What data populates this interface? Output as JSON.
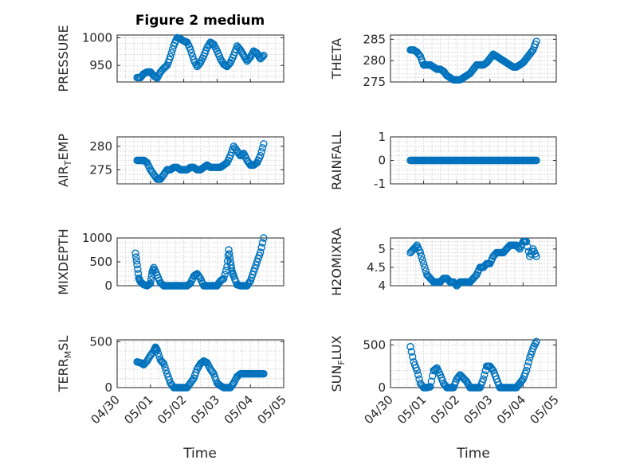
{
  "figure": {
    "title": "Figure 2 medium",
    "xlabel": "Time",
    "marker_color": "#0072BD",
    "x_tick_labels": [
      "04/30",
      "05/01",
      "05/02",
      "05/03",
      "05/04",
      "05/05"
    ]
  },
  "chart_data": [
    {
      "type": "scatter",
      "title": "Figure 2 medium",
      "ylabel": "PRESSURE",
      "ylim": [
        920,
        1005
      ],
      "yticks": [
        950,
        1000
      ],
      "ytick_labels": [
        "950",
        "1000"
      ],
      "xlim": [
        0,
        5
      ],
      "grid": true,
      "series": [
        {
          "x": [
            0.6,
            0.7,
            0.8,
            0.9,
            1.0,
            1.1,
            1.2,
            1.3,
            1.4,
            1.5,
            1.6,
            1.7,
            1.8,
            1.9,
            2.0,
            2.1,
            2.2,
            2.3,
            2.4,
            2.5,
            2.6,
            2.7,
            2.8,
            2.9,
            3.0,
            3.1,
            3.2,
            3.3,
            3.4,
            3.5,
            3.6,
            3.7,
            3.8,
            3.9,
            4.0,
            4.1,
            4.2,
            4.3,
            4.4
          ],
          "y": [
            928,
            928,
            935,
            938,
            938,
            931,
            927,
            938,
            945,
            950,
            966,
            986,
            1000,
            998,
            994,
            992,
            979,
            960,
            948,
            955,
            967,
            982,
            992,
            988,
            976,
            962,
            952,
            948,
            955,
            968,
            985,
            978,
            968,
            958,
            965,
            976,
            972,
            962,
            968
          ]
        }
      ]
    },
    {
      "type": "scatter",
      "ylabel": "THETA",
      "ylim": [
        275,
        286
      ],
      "yticks": [
        275,
        280,
        285
      ],
      "ytick_labels": [
        "275",
        "280",
        "285"
      ],
      "xlim": [
        0,
        5
      ],
      "grid": true,
      "series": [
        {
          "x": [
            0.6,
            0.7,
            0.8,
            0.9,
            1.0,
            1.1,
            1.2,
            1.3,
            1.4,
            1.5,
            1.6,
            1.7,
            1.8,
            1.9,
            2.0,
            2.1,
            2.2,
            2.3,
            2.4,
            2.5,
            2.6,
            2.7,
            2.8,
            2.9,
            3.0,
            3.1,
            3.2,
            3.3,
            3.4,
            3.5,
            3.6,
            3.7,
            3.8,
            3.9,
            4.0,
            4.1,
            4.2,
            4.3,
            4.4
          ],
          "y": [
            282.5,
            282.5,
            282,
            281,
            279,
            279,
            279,
            278.5,
            278,
            278,
            277.5,
            276.5,
            276,
            275.5,
            275.5,
            275.5,
            276,
            276.5,
            277,
            278,
            279,
            279,
            279,
            279.5,
            280.5,
            281.5,
            281,
            280.5,
            280,
            279.5,
            279,
            278.5,
            278.5,
            279,
            279.5,
            280.5,
            281.5,
            282.5,
            284.5
          ]
        }
      ]
    },
    {
      "type": "scatter",
      "ylabel": "AIR_TEMP",
      "ylim": [
        272,
        282
      ],
      "yticks": [
        275,
        280
      ],
      "ytick_labels": [
        "275",
        "280"
      ],
      "xlim": [
        0,
        5
      ],
      "grid": true,
      "series": [
        {
          "x": [
            0.6,
            0.7,
            0.8,
            0.9,
            1.0,
            1.1,
            1.2,
            1.3,
            1.4,
            1.5,
            1.6,
            1.7,
            1.8,
            1.9,
            2.0,
            2.1,
            2.2,
            2.3,
            2.4,
            2.5,
            2.6,
            2.7,
            2.8,
            2.9,
            3.0,
            3.1,
            3.2,
            3.3,
            3.4,
            3.5,
            3.6,
            3.7,
            3.8,
            3.9,
            4.0,
            4.1,
            4.2,
            4.3,
            4.4
          ],
          "y": [
            277,
            277,
            277,
            276.5,
            275,
            274,
            273,
            273,
            274,
            275,
            275,
            275.5,
            275.5,
            275,
            275,
            275,
            275.5,
            275.5,
            275,
            275,
            275.5,
            276,
            275.5,
            275.5,
            275.5,
            275.5,
            276,
            276.5,
            278,
            280,
            279,
            278,
            278.5,
            277,
            276,
            276,
            276.5,
            278,
            280.5
          ]
        }
      ]
    },
    {
      "type": "scatter",
      "ylabel": "RAINFALL",
      "ylim": [
        -1,
        1
      ],
      "yticks": [
        -1,
        0,
        1
      ],
      "ytick_labels": [
        "-1",
        "0",
        "1"
      ],
      "xlim": [
        0,
        5
      ],
      "grid": true,
      "series": [
        {
          "x": [
            0.6,
            0.7,
            0.8,
            0.9,
            1.0,
            1.1,
            1.2,
            1.3,
            1.4,
            1.5,
            1.6,
            1.7,
            1.8,
            1.9,
            2.0,
            2.1,
            2.2,
            2.3,
            2.4,
            2.5,
            2.6,
            2.7,
            2.8,
            2.9,
            3.0,
            3.1,
            3.2,
            3.3,
            3.4,
            3.5,
            3.6,
            3.7,
            3.8,
            3.9,
            4.0,
            4.1,
            4.2,
            4.3,
            4.4
          ],
          "y": [
            0,
            0,
            0,
            0,
            0,
            0,
            0,
            0,
            0,
            0,
            0,
            0,
            0,
            0,
            0,
            0,
            0,
            0,
            0,
            0,
            0,
            0,
            0,
            0,
            0,
            0,
            0,
            0,
            0,
            0,
            0,
            0,
            0,
            0,
            0,
            0,
            0,
            0,
            0
          ]
        }
      ]
    },
    {
      "type": "scatter",
      "ylabel": "MIXDEPTH",
      "ylim": [
        0,
        1000
      ],
      "yticks": [
        0,
        500,
        1000
      ],
      "ytick_labels": [
        "0",
        "500",
        "1000"
      ],
      "xlim": [
        0,
        5
      ],
      "grid": true,
      "series": [
        {
          "x": [
            0.55,
            0.6,
            0.65,
            0.7,
            0.8,
            0.9,
            1.0,
            1.05,
            1.1,
            1.2,
            1.3,
            1.4,
            1.5,
            1.6,
            1.7,
            1.8,
            1.9,
            2.0,
            2.1,
            2.2,
            2.3,
            2.4,
            2.5,
            2.6,
            2.7,
            2.8,
            2.9,
            3.0,
            3.1,
            3.2,
            3.3,
            3.35,
            3.4,
            3.45,
            3.5,
            3.6,
            3.7,
            3.8,
            3.9,
            4.0,
            4.1,
            4.2,
            4.3,
            4.4
          ],
          "y": [
            680,
            440,
            160,
            80,
            20,
            0,
            50,
            280,
            380,
            220,
            60,
            0,
            0,
            0,
            0,
            0,
            0,
            0,
            0,
            50,
            200,
            250,
            150,
            0,
            0,
            0,
            0,
            0,
            100,
            150,
            400,
            750,
            500,
            300,
            200,
            20,
            0,
            0,
            0,
            100,
            300,
            500,
            700,
            1000
          ]
        }
      ]
    },
    {
      "type": "scatter",
      "ylabel": "H2OMIXRA",
      "ylim": [
        4,
        5.3
      ],
      "yticks": [
        4,
        4.5,
        5
      ],
      "ytick_labels": [
        "4",
        "4.5",
        "5"
      ],
      "xlim": [
        0,
        5
      ],
      "grid": true,
      "series": [
        {
          "x": [
            0.6,
            0.7,
            0.8,
            0.9,
            1.0,
            1.1,
            1.2,
            1.3,
            1.4,
            1.5,
            1.6,
            1.7,
            1.8,
            1.9,
            2.0,
            2.1,
            2.2,
            2.3,
            2.4,
            2.5,
            2.6,
            2.7,
            2.8,
            2.9,
            3.0,
            3.1,
            3.2,
            3.3,
            3.4,
            3.5,
            3.6,
            3.7,
            3.8,
            3.9,
            4.0,
            4.1,
            4.2,
            4.3,
            4.4
          ],
          "y": [
            4.9,
            5.0,
            5.1,
            4.9,
            4.6,
            4.3,
            4.2,
            4.1,
            4.1,
            4.1,
            4.2,
            4.2,
            4.1,
            4.1,
            4.0,
            4.1,
            4.1,
            4.1,
            4.1,
            4.2,
            4.3,
            4.5,
            4.5,
            4.6,
            4.6,
            4.8,
            4.9,
            4.9,
            4.9,
            5.0,
            5.1,
            5.1,
            5.1,
            5.0,
            5.2,
            5.2,
            4.8,
            5.0,
            4.8
          ]
        }
      ]
    },
    {
      "type": "scatter",
      "ylabel": "TERR_MSL",
      "ylim": [
        0,
        520
      ],
      "yticks": [
        0,
        500
      ],
      "ytick_labels": [
        "0",
        "500"
      ],
      "xlim": [
        0,
        5
      ],
      "grid": true,
      "series": [
        {
          "x": [
            0.6,
            0.7,
            0.8,
            0.9,
            1.0,
            1.1,
            1.15,
            1.2,
            1.3,
            1.4,
            1.5,
            1.6,
            1.7,
            1.8,
            1.9,
            2.0,
            2.1,
            2.2,
            2.3,
            2.4,
            2.5,
            2.6,
            2.7,
            2.8,
            2.9,
            3.0,
            3.1,
            3.2,
            3.3,
            3.4,
            3.5,
            3.6,
            3.7,
            3.8,
            3.9,
            4.0,
            4.1,
            4.2,
            4.3,
            4.4
          ],
          "y": [
            280,
            270,
            250,
            290,
            350,
            400,
            440,
            410,
            300,
            260,
            150,
            50,
            0,
            0,
            0,
            0,
            0,
            50,
            100,
            200,
            260,
            290,
            270,
            200,
            150,
            50,
            20,
            0,
            0,
            0,
            50,
            120,
            150,
            150,
            150,
            150,
            150,
            150,
            150,
            150
          ]
        }
      ]
    },
    {
      "type": "scatter",
      "ylabel": "SUN_FLUX",
      "ylim": [
        0,
        560
      ],
      "yticks": [
        0,
        500
      ],
      "ytick_labels": [
        "0",
        "500"
      ],
      "xlim": [
        0,
        5
      ],
      "grid": true,
      "series": [
        {
          "x": [
            0.6,
            0.7,
            0.8,
            0.9,
            1.0,
            1.1,
            1.2,
            1.3,
            1.4,
            1.5,
            1.6,
            1.7,
            1.8,
            1.9,
            2.0,
            2.1,
            2.2,
            2.3,
            2.4,
            2.5,
            2.6,
            2.7,
            2.8,
            2.9,
            3.0,
            3.1,
            3.2,
            3.3,
            3.4,
            3.5,
            3.6,
            3.7,
            3.8,
            3.9,
            4.0,
            4.1,
            4.2,
            4.3,
            4.4
          ],
          "y": [
            480,
            300,
            200,
            50,
            0,
            0,
            10,
            200,
            230,
            150,
            50,
            0,
            0,
            0,
            100,
            150,
            110,
            70,
            0,
            0,
            0,
            0,
            100,
            250,
            250,
            200,
            100,
            0,
            0,
            0,
            0,
            0,
            0,
            50,
            100,
            200,
            350,
            460,
            540
          ]
        }
      ]
    }
  ]
}
